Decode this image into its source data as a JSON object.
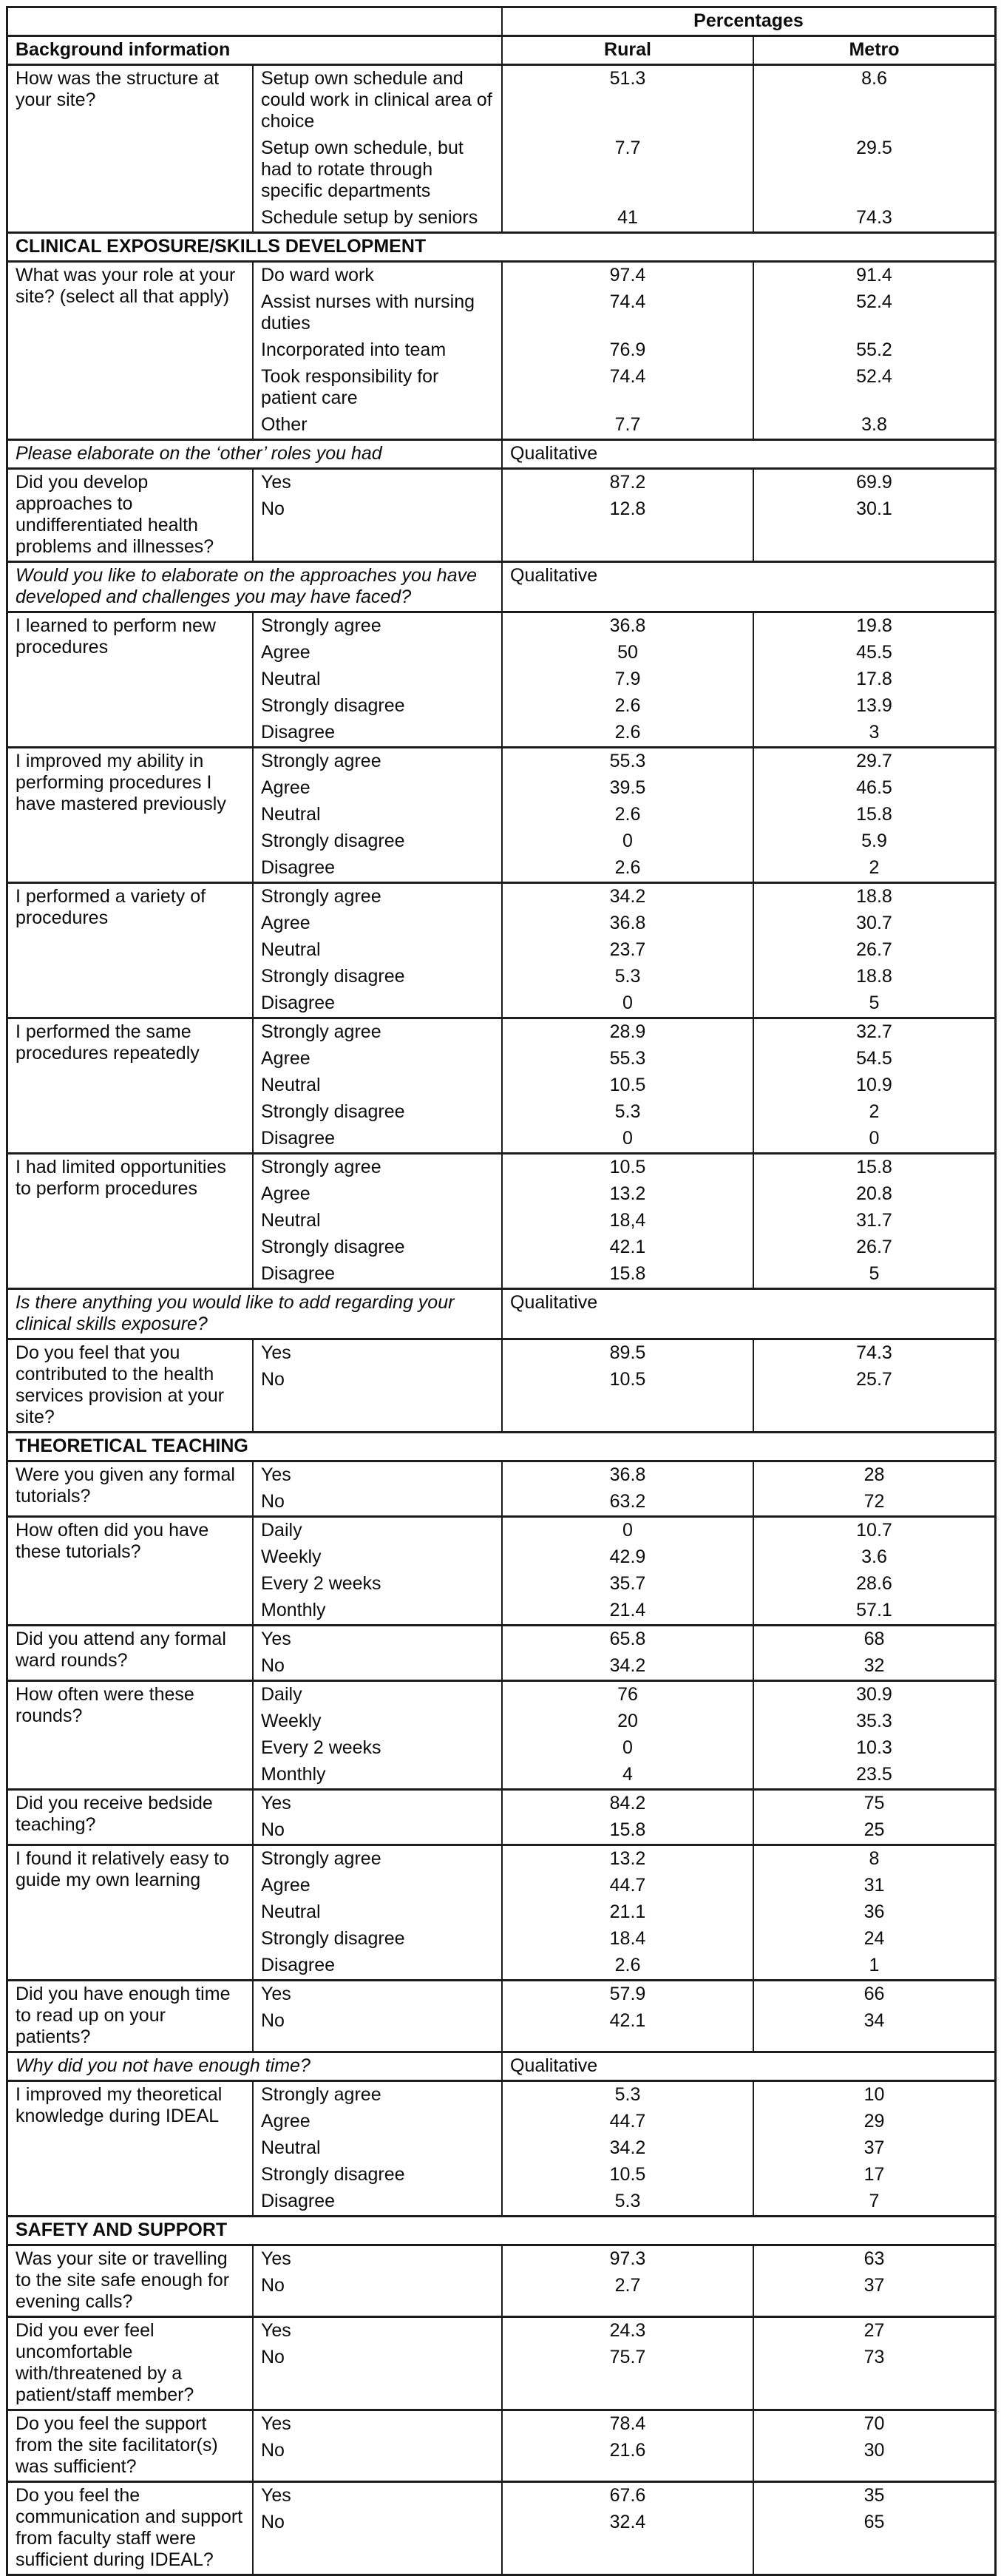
{
  "table": {
    "header": {
      "percentages_label": "Percentages",
      "background_label": "Background information",
      "col_rural": "Rural",
      "col_metro": "Metro"
    },
    "sections": [
      {
        "title": "",
        "rows": [
          {
            "type": "items",
            "question": "How was the structure at your site?",
            "items": [
              {
                "label": "Setup own schedule and could work in clinical area of choice",
                "rural": "51.3",
                "metro": "8.6"
              },
              {
                "label": "Setup own schedule, but had to rotate through specific departments",
                "rural": "7.7",
                "metro": "29.5"
              },
              {
                "label": "Schedule setup by seniors",
                "rural": "41",
                "metro": "74.3"
              }
            ]
          }
        ]
      },
      {
        "title": "CLINICAL EXPOSURE/SKILLS DEVELOPMENT",
        "rows": [
          {
            "type": "items",
            "question": "What was your role at your site? (select all that apply)",
            "items": [
              {
                "label": "Do ward work",
                "rural": "97.4",
                "metro": "91.4"
              },
              {
                "label": "Assist nurses with nursing duties",
                "rural": "74.4",
                "metro": "52.4"
              },
              {
                "label": "Incorporated into team",
                "rural": "76.9",
                "metro": "55.2"
              },
              {
                "label": "Took responsibility for patient care",
                "rural": "74.4",
                "metro": "52.4"
              },
              {
                "label": "Other",
                "rural": "7.7",
                "metro": "3.8"
              }
            ]
          },
          {
            "type": "qualitative",
            "question": "Please elaborate on the ‘other’ roles you had",
            "value": "Qualitative"
          },
          {
            "type": "items",
            "question": "Did you develop approaches to undifferentiated health problems and illnesses?",
            "items": [
              {
                "label": "Yes",
                "rural": "87.2",
                "metro": "69.9"
              },
              {
                "label": "No",
                "rural": "12.8",
                "metro": "30.1"
              }
            ]
          },
          {
            "type": "qualitative",
            "question": "Would you like to elaborate on the approaches you have developed and challenges you may have faced?",
            "value": "Qualitative"
          },
          {
            "type": "items",
            "question": "I learned to perform new procedures",
            "items": [
              {
                "label": "Strongly agree",
                "rural": "36.8",
                "metro": "19.8"
              },
              {
                "label": "Agree",
                "rural": "50",
                "metro": "45.5"
              },
              {
                "label": "Neutral",
                "rural": "7.9",
                "metro": "17.8"
              },
              {
                "label": "Strongly disagree",
                "rural": "2.6",
                "metro": "13.9"
              },
              {
                "label": "Disagree",
                "rural": "2.6",
                "metro": "3"
              }
            ]
          },
          {
            "type": "items",
            "question": "I improved my ability in performing procedures I have mastered previously",
            "items": [
              {
                "label": "Strongly agree",
                "rural": "55.3",
                "metro": "29.7"
              },
              {
                "label": "Agree",
                "rural": "39.5",
                "metro": "46.5"
              },
              {
                "label": "Neutral",
                "rural": "2.6",
                "metro": "15.8"
              },
              {
                "label": "Strongly disagree",
                "rural": "0",
                "metro": "5.9"
              },
              {
                "label": "Disagree",
                "rural": "2.6",
                "metro": "2"
              }
            ]
          },
          {
            "type": "items",
            "question": "I performed a variety of procedures",
            "items": [
              {
                "label": "Strongly agree",
                "rural": "34.2",
                "metro": "18.8"
              },
              {
                "label": "Agree",
                "rural": "36.8",
                "metro": "30.7"
              },
              {
                "label": "Neutral",
                "rural": "23.7",
                "metro": "26.7"
              },
              {
                "label": "Strongly disagree",
                "rural": "5.3",
                "metro": "18.8"
              },
              {
                "label": "Disagree",
                "rural": "0",
                "metro": "5"
              }
            ]
          },
          {
            "type": "items",
            "question": "I performed the same procedures repeatedly",
            "items": [
              {
                "label": "Strongly agree",
                "rural": "28.9",
                "metro": "32.7"
              },
              {
                "label": "Agree",
                "rural": "55.3",
                "metro": "54.5"
              },
              {
                "label": "Neutral",
                "rural": "10.5",
                "metro": "10.9"
              },
              {
                "label": "Strongly disagree",
                "rural": "5.3",
                "metro": "2"
              },
              {
                "label": "Disagree",
                "rural": "0",
                "metro": "0"
              }
            ]
          },
          {
            "type": "items",
            "question": "I had limited opportunities to perform procedures",
            "items": [
              {
                "label": "Strongly agree",
                "rural": "10.5",
                "metro": "15.8"
              },
              {
                "label": "Agree",
                "rural": "13.2",
                "metro": "20.8"
              },
              {
                "label": "Neutral",
                "rural": "18,4",
                "metro": "31.7"
              },
              {
                "label": "Strongly disagree",
                "rural": "42.1",
                "metro": "26.7"
              },
              {
                "label": "Disagree",
                "rural": "15.8",
                "metro": "5"
              }
            ]
          },
          {
            "type": "qualitative",
            "question": "Is there anything you would like to add regarding your clinical skills exposure?",
            "value": "Qualitative"
          },
          {
            "type": "items",
            "question": "Do you feel that you contributed to the health services provision at your site?",
            "items": [
              {
                "label": "Yes",
                "rural": "89.5",
                "metro": "74.3"
              },
              {
                "label": "No",
                "rural": "10.5",
                "metro": "25.7"
              }
            ]
          }
        ]
      },
      {
        "title": "THEORETICAL TEACHING",
        "rows": [
          {
            "type": "items",
            "question": "Were you given any formal tutorials?",
            "items": [
              {
                "label": "Yes",
                "rural": "36.8",
                "metro": "28"
              },
              {
                "label": "No",
                "rural": "63.2",
                "metro": "72"
              }
            ]
          },
          {
            "type": "items",
            "question": "How often did you have these tutorials?",
            "items": [
              {
                "label": "Daily",
                "rural": "0",
                "metro": "10.7"
              },
              {
                "label": "Weekly",
                "rural": "42.9",
                "metro": "3.6"
              },
              {
                "label": "Every 2 weeks",
                "rural": "35.7",
                "metro": "28.6"
              },
              {
                "label": "Monthly",
                "rural": "21.4",
                "metro": "57.1"
              }
            ]
          },
          {
            "type": "items",
            "question": "Did you attend any formal ward rounds?",
            "items": [
              {
                "label": "Yes",
                "rural": "65.8",
                "metro": "68"
              },
              {
                "label": "No",
                "rural": "34.2",
                "metro": "32"
              }
            ]
          },
          {
            "type": "items",
            "question": "How often were these rounds?",
            "items": [
              {
                "label": "Daily",
                "rural": "76",
                "metro": "30.9"
              },
              {
                "label": "Weekly",
                "rural": "20",
                "metro": "35.3"
              },
              {
                "label": "Every 2 weeks",
                "rural": "0",
                "metro": "10.3"
              },
              {
                "label": "Monthly",
                "rural": "4",
                "metro": "23.5"
              }
            ]
          },
          {
            "type": "items",
            "question": "Did you receive bedside teaching?",
            "items": [
              {
                "label": "Yes",
                "rural": "84.2",
                "metro": "75"
              },
              {
                "label": "No",
                "rural": "15.8",
                "metro": "25"
              }
            ]
          },
          {
            "type": "items",
            "question": "I found it relatively easy to guide my own learning",
            "items": [
              {
                "label": "Strongly agree",
                "rural": "13.2",
                "metro": "8"
              },
              {
                "label": "Agree",
                "rural": "44.7",
                "metro": "31"
              },
              {
                "label": "Neutral",
                "rural": "21.1",
                "metro": "36"
              },
              {
                "label": "Strongly disagree",
                "rural": "18.4",
                "metro": "24"
              },
              {
                "label": "Disagree",
                "rural": "2.6",
                "metro": "1"
              }
            ]
          },
          {
            "type": "items",
            "question": "Did you have enough time to read up on your patients?",
            "items": [
              {
                "label": "Yes",
                "rural": "57.9",
                "metro": "66"
              },
              {
                "label": "No",
                "rural": "42.1",
                "metro": "34"
              }
            ]
          },
          {
            "type": "qualitative",
            "question": "Why did you not have enough time?",
            "value": "Qualitative"
          },
          {
            "type": "items",
            "question": "I improved my theoretical knowledge during IDEAL",
            "items": [
              {
                "label": "Strongly agree",
                "rural": "5.3",
                "metro": "10"
              },
              {
                "label": "Agree",
                "rural": "44.7",
                "metro": "29"
              },
              {
                "label": "Neutral",
                "rural": "34.2",
                "metro": "37"
              },
              {
                "label": "Strongly disagree",
                "rural": "10.5",
                "metro": "17"
              },
              {
                "label": "Disagree",
                "rural": "5.3",
                "metro": "7"
              }
            ]
          }
        ]
      },
      {
        "title": "SAFETY AND SUPPORT",
        "rows": [
          {
            "type": "items",
            "question": "Was your site or travelling to the site safe enough for evening calls?",
            "items": [
              {
                "label": "Yes",
                "rural": "97.3",
                "metro": "63"
              },
              {
                "label": "No",
                "rural": "2.7",
                "metro": "37"
              }
            ]
          },
          {
            "type": "items",
            "question": "Did you ever feel uncomfortable with/threatened by a patient/staff member?",
            "items": [
              {
                "label": "Yes",
                "rural": "24.3",
                "metro": "27"
              },
              {
                "label": "No",
                "rural": "75.7",
                "metro": "73"
              }
            ]
          },
          {
            "type": "items",
            "question": "Do you feel the support from the site facilitator(s) was sufficient?",
            "items": [
              {
                "label": "Yes",
                "rural": "78.4",
                "metro": "70"
              },
              {
                "label": "No",
                "rural": "21.6",
                "metro": "30"
              }
            ]
          },
          {
            "type": "items",
            "question": "Do you feel the communication and support from faculty staff were sufficient during IDEAL?",
            "items": [
              {
                "label": "Yes",
                "rural": "67.6",
                "metro": "35"
              },
              {
                "label": "No",
                "rural": "32.4",
                "metro": "65"
              }
            ]
          }
        ]
      }
    ]
  }
}
